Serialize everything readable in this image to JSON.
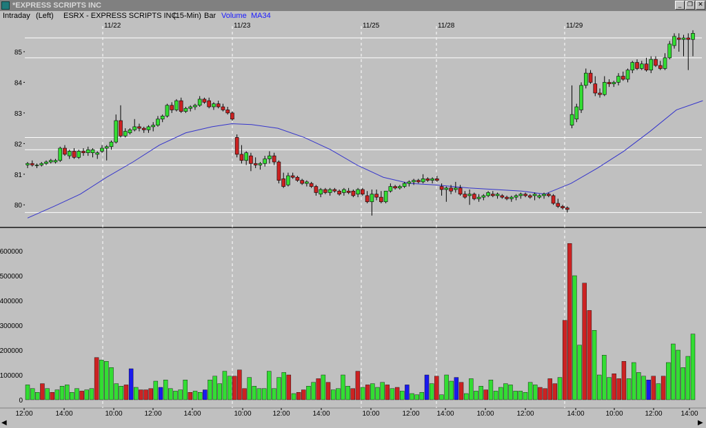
{
  "window": {
    "title": "*EXPRESS SCRIPTS INC",
    "buttons": {
      "minimize": "_",
      "restore": "❐",
      "close": "✕"
    }
  },
  "header": {
    "chart_type_label": "Intraday",
    "axis_side": "(Left)",
    "symbol_desc": "ESRX - EXPRESS SCRIPTS INC",
    "interval": "(15-Min)",
    "style": "Bar",
    "volume_label": "Volume",
    "ma_label": "MA34"
  },
  "colors": {
    "up": "#33dd33",
    "down": "#cc2222",
    "neutral": "#1a1aee",
    "ma_line": "#3333cc",
    "background": "#c0c0c0",
    "grid": "#ffffff"
  },
  "chart_data": [
    {
      "type": "candlestick",
      "title": "ESRX - EXPRESS SCRIPTS INC (15-Min)",
      "date_labels": [
        "11/22",
        "11/23",
        "11/25",
        "11/28",
        "11/29"
      ],
      "y_ticks": [
        80,
        81,
        82,
        83,
        84,
        85
      ],
      "ylim": [
        79.6,
        85.9
      ],
      "horizontal_levels": [
        85.45,
        84.8,
        82.2,
        81.8,
        81.3,
        79.75
      ],
      "grid": true,
      "series": [
        {
          "name": "MA34",
          "points": [
            [
              0,
              79.57
            ],
            [
              8,
              79.95
            ],
            [
              16,
              80.35
            ],
            [
              24,
              80.9
            ],
            [
              32,
              81.4
            ],
            [
              40,
              81.95
            ],
            [
              48,
              82.35
            ],
            [
              56,
              82.55
            ],
            [
              62,
              82.65
            ],
            [
              68,
              82.62
            ],
            [
              76,
              82.5
            ],
            [
              84,
              82.2
            ],
            [
              92,
              81.8
            ],
            [
              100,
              81.3
            ],
            [
              108,
              80.9
            ],
            [
              116,
              80.7
            ],
            [
              124,
              80.65
            ],
            [
              134,
              80.55
            ],
            [
              142,
              80.5
            ],
            [
              150,
              80.45
            ],
            [
              157,
              80.35
            ],
            [
              165,
              80.7
            ],
            [
              173,
              81.2
            ],
            [
              181,
              81.75
            ],
            [
              189,
              82.4
            ],
            [
              197,
              83.1
            ],
            [
              205,
              83.4
            ]
          ]
        }
      ],
      "candles": [
        [
          81.3,
          81.4,
          81.2,
          81.35
        ],
        [
          81.35,
          81.45,
          81.25,
          81.3
        ],
        [
          81.3,
          81.35,
          81.2,
          81.3
        ],
        [
          81.3,
          81.4,
          81.25,
          81.35
        ],
        [
          81.35,
          81.45,
          81.3,
          81.4
        ],
        [
          81.4,
          81.5,
          81.35,
          81.45
        ],
        [
          81.4,
          81.5,
          81.35,
          81.45
        ],
        [
          81.45,
          81.9,
          81.4,
          81.85
        ],
        [
          81.85,
          81.95,
          81.6,
          81.65
        ],
        [
          81.6,
          81.8,
          81.5,
          81.75
        ],
        [
          81.75,
          81.85,
          81.5,
          81.55
        ],
        [
          81.55,
          81.8,
          81.5,
          81.75
        ],
        [
          81.75,
          81.85,
          81.6,
          81.7
        ],
        [
          81.7,
          81.9,
          81.6,
          81.8
        ],
        [
          81.7,
          81.85,
          81.55,
          81.8
        ],
        [
          81.65,
          81.75,
          81.5,
          81.7
        ],
        [
          81.75,
          81.95,
          81.7,
          81.85
        ],
        [
          81.85,
          81.95,
          81.45,
          81.9
        ],
        [
          81.9,
          82.1,
          81.8,
          82.05
        ],
        [
          82.05,
          82.95,
          82.0,
          82.75
        ],
        [
          82.75,
          83.25,
          82.2,
          82.25
        ],
        [
          82.25,
          82.5,
          82.2,
          82.4
        ],
        [
          82.35,
          82.5,
          82.3,
          82.45
        ],
        [
          82.45,
          82.8,
          82.4,
          82.55
        ],
        [
          82.55,
          82.65,
          82.4,
          82.5
        ],
        [
          82.5,
          82.55,
          82.35,
          82.45
        ],
        [
          82.45,
          82.6,
          82.35,
          82.55
        ],
        [
          82.55,
          82.7,
          82.4,
          82.6
        ],
        [
          82.6,
          82.9,
          82.55,
          82.8
        ],
        [
          82.8,
          82.95,
          82.7,
          82.9
        ],
        [
          82.9,
          83.3,
          82.85,
          83.25
        ],
        [
          83.25,
          83.35,
          83.0,
          83.1
        ],
        [
          83.1,
          83.45,
          83.05,
          83.4
        ],
        [
          83.4,
          83.5,
          83.0,
          83.05
        ],
        [
          83.05,
          83.2,
          83.0,
          83.15
        ],
        [
          83.15,
          83.25,
          83.05,
          83.2
        ],
        [
          83.2,
          83.3,
          83.1,
          83.25
        ],
        [
          83.25,
          83.55,
          83.2,
          83.45
        ],
        [
          83.45,
          83.5,
          83.3,
          83.35
        ],
        [
          83.4,
          83.5,
          83.15,
          83.2
        ],
        [
          83.2,
          83.35,
          83.1,
          83.3
        ],
        [
          83.3,
          83.4,
          83.15,
          83.2
        ],
        [
          83.2,
          83.3,
          83.05,
          83.1
        ],
        [
          83.1,
          83.2,
          82.95,
          83.0
        ],
        [
          83.0,
          83.05,
          82.75,
          82.8
        ],
        [
          82.2,
          82.3,
          81.55,
          81.65
        ],
        [
          81.65,
          81.95,
          81.35,
          81.45
        ],
        [
          81.45,
          81.75,
          81.3,
          81.7
        ],
        [
          81.6,
          81.7,
          81.1,
          81.35
        ],
        [
          81.35,
          81.55,
          81.2,
          81.3
        ],
        [
          81.3,
          81.4,
          81.15,
          81.35
        ],
        [
          81.35,
          81.6,
          81.25,
          81.5
        ],
        [
          81.5,
          81.75,
          81.35,
          81.6
        ],
        [
          81.6,
          81.7,
          81.3,
          81.4
        ],
        [
          81.4,
          81.45,
          80.7,
          80.8
        ],
        [
          80.85,
          81.05,
          80.55,
          80.6
        ],
        [
          80.65,
          81.05,
          80.6,
          80.95
        ],
        [
          80.95,
          81.05,
          80.85,
          80.9
        ],
        [
          80.9,
          80.95,
          80.75,
          80.8
        ],
        [
          80.8,
          80.85,
          80.65,
          80.7
        ],
        [
          80.7,
          80.8,
          80.6,
          80.75
        ],
        [
          80.7,
          80.75,
          80.55,
          80.6
        ],
        [
          80.6,
          80.65,
          80.3,
          80.4
        ],
        [
          80.35,
          80.55,
          80.25,
          80.5
        ],
        [
          80.5,
          80.55,
          80.35,
          80.4
        ],
        [
          80.4,
          80.55,
          80.3,
          80.5
        ],
        [
          80.5,
          80.55,
          80.4,
          80.45
        ],
        [
          80.45,
          80.5,
          80.3,
          80.35
        ],
        [
          80.4,
          80.55,
          80.3,
          80.5
        ],
        [
          80.45,
          80.55,
          80.35,
          80.4
        ],
        [
          80.45,
          80.5,
          80.25,
          80.3
        ],
        [
          80.35,
          80.55,
          80.25,
          80.5
        ],
        [
          80.5,
          80.55,
          80.3,
          80.35
        ],
        [
          80.3,
          80.45,
          80.05,
          80.1
        ],
        [
          80.1,
          80.5,
          79.65,
          80.35
        ],
        [
          80.35,
          80.5,
          80.15,
          80.25
        ],
        [
          80.25,
          80.45,
          80.05,
          80.1
        ],
        [
          80.1,
          80.45,
          80.05,
          80.45
        ],
        [
          80.45,
          80.7,
          80.4,
          80.6
        ],
        [
          80.6,
          80.65,
          80.5,
          80.55
        ],
        [
          80.55,
          80.65,
          80.5,
          80.6
        ],
        [
          80.6,
          80.75,
          80.55,
          80.7
        ],
        [
          80.7,
          80.8,
          80.6,
          80.75
        ],
        [
          80.75,
          80.85,
          80.65,
          80.8
        ],
        [
          80.8,
          80.85,
          80.7,
          80.75
        ],
        [
          80.75,
          81.0,
          80.7,
          80.85
        ],
        [
          80.85,
          80.9,
          80.75,
          80.8
        ],
        [
          80.8,
          80.9,
          80.7,
          80.85
        ],
        [
          80.85,
          80.95,
          80.75,
          80.8
        ],
        [
          80.6,
          80.7,
          80.3,
          80.5
        ],
        [
          80.5,
          80.6,
          80.1,
          80.55
        ],
        [
          80.55,
          80.65,
          80.35,
          80.45
        ],
        [
          80.5,
          80.75,
          80.4,
          80.55
        ],
        [
          80.55,
          80.65,
          80.3,
          80.35
        ],
        [
          80.35,
          80.45,
          80.2,
          80.25
        ],
        [
          80.3,
          80.5,
          80.0,
          80.35
        ],
        [
          80.35,
          80.4,
          80.15,
          80.2
        ],
        [
          80.2,
          80.35,
          80.1,
          80.25
        ],
        [
          80.25,
          80.35,
          80.15,
          80.3
        ],
        [
          80.3,
          80.45,
          80.25,
          80.4
        ],
        [
          80.35,
          80.45,
          80.25,
          80.3
        ],
        [
          80.3,
          80.4,
          80.2,
          80.35
        ],
        [
          80.3,
          80.35,
          80.2,
          80.25
        ],
        [
          80.25,
          80.3,
          80.15,
          80.2
        ],
        [
          80.2,
          80.3,
          80.1,
          80.25
        ],
        [
          80.25,
          80.35,
          80.15,
          80.3
        ],
        [
          80.3,
          80.4,
          80.2,
          80.35
        ],
        [
          80.35,
          80.4,
          80.25,
          80.3
        ],
        [
          80.3,
          80.35,
          80.2,
          80.25
        ],
        [
          80.3,
          80.4,
          80.15,
          80.35
        ],
        [
          80.25,
          80.35,
          80.2,
          80.3
        ],
        [
          80.3,
          80.4,
          80.2,
          80.35
        ],
        [
          80.35,
          80.4,
          80.25,
          80.3
        ],
        [
          80.3,
          80.35,
          80.0,
          80.05
        ],
        [
          80.05,
          80.2,
          79.9,
          79.95
        ],
        [
          79.95,
          80.0,
          79.85,
          79.9
        ],
        [
          79.9,
          79.95,
          79.75,
          79.85
        ],
        [
          82.6,
          83.9,
          82.5,
          82.95
        ],
        [
          82.8,
          83.3,
          82.7,
          83.2
        ],
        [
          83.1,
          84.0,
          83.0,
          83.9
        ],
        [
          83.9,
          84.45,
          83.8,
          84.3
        ],
        [
          84.3,
          84.4,
          83.95,
          84.0
        ],
        [
          83.95,
          84.2,
          83.55,
          83.65
        ],
        [
          83.65,
          83.8,
          83.5,
          83.6
        ],
        [
          83.6,
          84.2,
          83.55,
          84.0
        ],
        [
          84.0,
          84.1,
          83.85,
          83.95
        ],
        [
          83.95,
          84.05,
          83.85,
          84.0
        ],
        [
          84.0,
          84.3,
          83.9,
          84.2
        ],
        [
          84.2,
          84.35,
          84.05,
          84.1
        ],
        [
          84.1,
          84.45,
          84.0,
          84.4
        ],
        [
          84.4,
          84.7,
          84.3,
          84.65
        ],
        [
          84.65,
          84.75,
          84.4,
          84.45
        ],
        [
          84.45,
          84.7,
          84.4,
          84.6
        ],
        [
          84.6,
          84.8,
          84.35,
          84.4
        ],
        [
          84.4,
          84.85,
          84.3,
          84.75
        ],
        [
          84.75,
          84.85,
          84.5,
          84.55
        ],
        [
          84.55,
          84.7,
          84.4,
          84.45
        ],
        [
          84.45,
          84.95,
          84.4,
          84.8
        ],
        [
          84.8,
          85.35,
          84.75,
          85.25
        ],
        [
          85.2,
          85.6,
          85.1,
          85.5
        ],
        [
          85.45,
          85.6,
          85.0,
          85.4
        ],
        [
          85.4,
          85.55,
          84.85,
          85.45
        ],
        [
          85.45,
          85.6,
          84.4,
          85.4
        ],
        [
          85.4,
          85.7,
          84.85,
          85.6
        ]
      ]
    },
    {
      "type": "bar",
      "title": "Volume",
      "y_ticks": [
        0,
        100000,
        200000,
        300000,
        400000,
        500000,
        600000
      ],
      "ylim": [
        0,
        650000
      ],
      "x_tick_labels": [
        "12:00",
        "14:00",
        "10:00",
        "12:00",
        "14:00",
        "10:00",
        "12:00",
        "14:00",
        "10:00",
        "12:00",
        "14:00",
        "10:00",
        "12:00",
        "14:00",
        "10:00",
        "12:00",
        "14:00"
      ],
      "volume_colors": "gggrgrgggggrggrgggggrbgrrrgbgggggrggbgggggrrrggggggggrgrrggrgrggggrrgrgggrgrgbgggbgrgggbrggggrggggggggggrrrrgrrggrrggggrrrggggbrgrg",
      "values": [
        60000,
        45000,
        30000,
        65000,
        45000,
        30000,
        40000,
        55000,
        60000,
        30000,
        45000,
        35000,
        40000,
        45000,
        170000,
        160000,
        155000,
        130000,
        65000,
        55000,
        60000,
        125000,
        50000,
        40000,
        40000,
        45000,
        75000,
        50000,
        80000,
        45000,
        35000,
        40000,
        80000,
        30000,
        35000,
        30000,
        40000,
        80000,
        95000,
        65000,
        115000,
        95000,
        95000,
        120000,
        45000,
        90000,
        55000,
        45000,
        45000,
        115000,
        45000,
        90000,
        110000,
        100000,
        25000,
        30000,
        40000,
        55000,
        70000,
        85000,
        100000,
        70000,
        40000,
        45000,
        100000,
        55000,
        45000,
        115000,
        50000,
        60000,
        65000,
        50000,
        70000,
        60000,
        45000,
        50000,
        35000,
        60000,
        25000,
        20000,
        30000,
        100000,
        65000,
        95000,
        20000,
        100000,
        75000,
        90000,
        70000,
        25000,
        85000,
        35000,
        55000,
        40000,
        80000,
        35000,
        50000,
        65000,
        60000,
        35000,
        35000,
        30000,
        70000,
        60000,
        50000,
        45000,
        85000,
        65000,
        90000,
        320000,
        630000,
        500000,
        220000,
        470000,
        360000,
        280000,
        100000,
        180000,
        90000,
        105000,
        85000,
        155000,
        85000,
        150000,
        110000,
        95000,
        80000,
        95000,
        65000,
        95000,
        150000,
        225000,
        200000,
        130000,
        175000,
        265000
      ]
    }
  ],
  "volume_axis_labels": [
    "0",
    "100000",
    "200000",
    "300000",
    "400000",
    "500000",
    "600000"
  ]
}
